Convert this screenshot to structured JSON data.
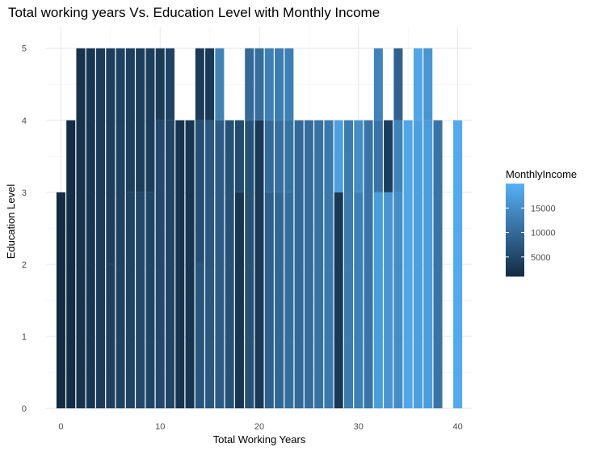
{
  "chart_data": {
    "type": "bar",
    "title": "Total working years Vs. Education Level with Monthly Income",
    "xlabel": "Total Working Years",
    "ylabel": "Education Level",
    "xlim": [
      -1.5,
      41.5
    ],
    "ylim": [
      0,
      5.3
    ],
    "x_ticks": [
      "0",
      "10",
      "20",
      "30",
      "40"
    ],
    "y_ticks": [
      "0",
      "1",
      "2",
      "3",
      "4",
      "5"
    ],
    "grid": true,
    "legend": {
      "title": "MonthlyIncome",
      "position": "right",
      "range": [
        1000,
        20000
      ],
      "ticks": [
        "5000",
        "10000",
        "15000"
      ],
      "low_color": "#132B43",
      "high_color": "#56B1F7"
    },
    "x": [
      0,
      1,
      2,
      3,
      4,
      5,
      6,
      7,
      8,
      9,
      10,
      11,
      12,
      13,
      14,
      15,
      16,
      17,
      18,
      19,
      20,
      21,
      22,
      23,
      24,
      25,
      26,
      27,
      28,
      29,
      30,
      31,
      32,
      33,
      34,
      35,
      36,
      37,
      38,
      40
    ],
    "bars": [
      {
        "x": 0,
        "segments": [
          [
            3,
            1100
          ]
        ]
      },
      {
        "x": 1,
        "segments": [
          [
            4,
            1200
          ]
        ]
      },
      {
        "x": 2,
        "segments": [
          [
            5,
            2000
          ]
        ]
      },
      {
        "x": 3,
        "segments": [
          [
            5,
            2500
          ]
        ]
      },
      {
        "x": 4,
        "segments": [
          [
            5,
            3200
          ]
        ]
      },
      {
        "x": 5,
        "segments": [
          [
            2,
            4000
          ],
          [
            5,
            3800
          ]
        ]
      },
      {
        "x": 6,
        "segments": [
          [
            5,
            4200
          ]
        ]
      },
      {
        "x": 7,
        "segments": [
          [
            3,
            4500
          ],
          [
            5,
            3800
          ]
        ]
      },
      {
        "x": 8,
        "segments": [
          [
            3,
            5000
          ],
          [
            5,
            3500
          ]
        ]
      },
      {
        "x": 9,
        "segments": [
          [
            3,
            4800
          ],
          [
            5,
            3600
          ]
        ]
      },
      {
        "x": 10,
        "segments": [
          [
            4,
            5200
          ],
          [
            5,
            3300
          ]
        ]
      },
      {
        "x": 11,
        "segments": [
          [
            4,
            4700
          ],
          [
            5,
            4400
          ]
        ]
      },
      {
        "x": 12,
        "segments": [
          [
            4,
            2200
          ]
        ]
      },
      {
        "x": 13,
        "segments": [
          [
            4,
            2500
          ]
        ]
      },
      {
        "x": 14,
        "segments": [
          [
            2,
            7000
          ],
          [
            4,
            6000
          ],
          [
            5,
            3300
          ]
        ]
      },
      {
        "x": 15,
        "segments": [
          [
            4,
            7200
          ],
          [
            5,
            3000
          ]
        ]
      },
      {
        "x": 16,
        "segments": [
          [
            4,
            8000
          ],
          [
            5,
            13500
          ]
        ]
      },
      {
        "x": 17,
        "segments": [
          [
            4,
            6500
          ]
        ]
      },
      {
        "x": 18,
        "segments": [
          [
            3,
            2500
          ],
          [
            4,
            5500
          ]
        ]
      },
      {
        "x": 19,
        "segments": [
          [
            4,
            6500
          ],
          [
            5,
            10000
          ]
        ]
      },
      {
        "x": 20,
        "segments": [
          [
            4,
            3000
          ],
          [
            5,
            10500
          ]
        ]
      },
      {
        "x": 21,
        "segments": [
          [
            3,
            8500
          ],
          [
            4,
            10000
          ],
          [
            5,
            13000
          ]
        ]
      },
      {
        "x": 22,
        "segments": [
          [
            3,
            9500
          ],
          [
            4,
            10800
          ],
          [
            5,
            12500
          ]
        ]
      },
      {
        "x": 23,
        "segments": [
          [
            3,
            10500
          ],
          [
            4,
            11000
          ],
          [
            5,
            13000
          ]
        ]
      },
      {
        "x": 24,
        "segments": [
          [
            4,
            9800
          ]
        ]
      },
      {
        "x": 25,
        "segments": [
          [
            4,
            10500
          ]
        ]
      },
      {
        "x": 26,
        "segments": [
          [
            4,
            11000
          ]
        ]
      },
      {
        "x": 27,
        "segments": [
          [
            4,
            12000
          ]
        ]
      },
      {
        "x": 28,
        "segments": [
          [
            3,
            3000
          ],
          [
            4,
            17500
          ]
        ]
      },
      {
        "x": 29,
        "segments": [
          [
            4,
            12500
          ]
        ]
      },
      {
        "x": 30,
        "segments": [
          [
            3,
            13000
          ],
          [
            4,
            15000
          ]
        ]
      },
      {
        "x": 31,
        "segments": [
          [
            4,
            11500
          ]
        ]
      },
      {
        "x": 32,
        "segments": [
          [
            3,
            17000
          ],
          [
            4,
            11500
          ],
          [
            5,
            13500
          ]
        ]
      },
      {
        "x": 33,
        "segments": [
          [
            3,
            16000
          ],
          [
            4,
            3500
          ]
        ]
      },
      {
        "x": 34,
        "segments": [
          [
            3,
            15000
          ],
          [
            4,
            13500
          ],
          [
            5,
            9000
          ]
        ]
      },
      {
        "x": 35,
        "segments": [
          [
            4,
            18500
          ]
        ]
      },
      {
        "x": 36,
        "segments": [
          [
            4,
            17500
          ],
          [
            5,
            18500
          ]
        ]
      },
      {
        "x": 37,
        "segments": [
          [
            4,
            17000
          ],
          [
            5,
            16000
          ]
        ]
      },
      {
        "x": 38,
        "segments": [
          [
            4,
            11500
          ]
        ]
      },
      {
        "x": 40,
        "segments": [
          [
            4,
            19000
          ]
        ]
      }
    ]
  }
}
